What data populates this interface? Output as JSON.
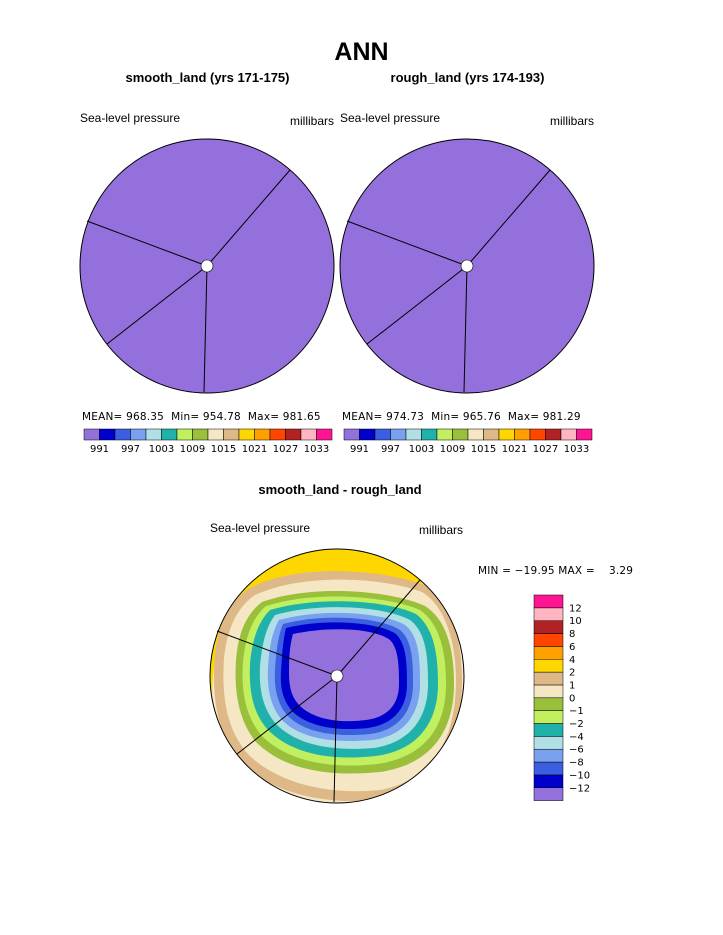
{
  "title": "ANN",
  "colors": {
    "abs_scale": [
      "#9370db",
      "#0000cd",
      "#3a5fe0",
      "#7aa0f0",
      "#b0e0e6",
      "#20b2aa",
      "#c0f060",
      "#9abf3a",
      "#f5e6c4",
      "#deb887",
      "#ffd700",
      "#ffa000",
      "#ff4500",
      "#b22222",
      "#ffb6c1",
      "#ff1493"
    ],
    "diff_scale": [
      "#9370db",
      "#0000cd",
      "#3a5fe0",
      "#7aa0f0",
      "#b0e0e6",
      "#20b2aa",
      "#c0f060",
      "#9abf3a",
      "#f5e6c4",
      "#deb887",
      "#ffd700",
      "#ffa000",
      "#ff4500",
      "#b22222",
      "#ffb6c1",
      "#ff1493"
    ]
  },
  "panels": [
    {
      "title": "smooth_land (yrs 171-175)",
      "variable": "Sea-level pressure",
      "units": "millibars",
      "stats": {
        "mean_label": "MEAN=",
        "mean": "968.35",
        "min_label": "Min=",
        "min": "954.78",
        "max_label": "Max=",
        "max": "981.65"
      },
      "colorbar_labels": [
        "991",
        "997",
        "1003",
        "1009",
        "1015",
        "1021",
        "1027",
        "1033"
      ]
    },
    {
      "title": "rough_land (yrs 174-193)",
      "variable": "Sea-level pressure",
      "units": "millibars",
      "stats": {
        "mean_label": "MEAN=",
        "mean": "974.73",
        "min_label": "Min=",
        "min": "965.76",
        "max_label": "Max=",
        "max": "981.29"
      },
      "colorbar_labels": [
        "991",
        "997",
        "1003",
        "1009",
        "1015",
        "1021",
        "1027",
        "1033"
      ]
    }
  ],
  "diff": {
    "title": "smooth_land - rough_land",
    "variable": "Sea-level pressure",
    "units": "millibars",
    "minmax": "MIN = −19.95 MAX =    3.29",
    "colorbar_labels": [
      "12",
      "10",
      "8",
      "6",
      "4",
      "2",
      "1",
      "0",
      "−1",
      "−2",
      "−4",
      "−6",
      "−8",
      "−10",
      "−12"
    ]
  },
  "chart_data": [
    {
      "type": "heatmap",
      "title": "smooth_land (yrs 171-175)",
      "projection": "polar",
      "field": "Sea-level pressure",
      "units": "millibars",
      "mean": 968.35,
      "min": 954.78,
      "max": 981.65,
      "contour_levels": [
        991,
        997,
        1003,
        1009,
        1015,
        1021,
        1027,
        1033
      ]
    },
    {
      "type": "heatmap",
      "title": "rough_land (yrs 174-193)",
      "projection": "polar",
      "field": "Sea-level pressure",
      "units": "millibars",
      "mean": 974.73,
      "min": 965.76,
      "max": 981.29,
      "contour_levels": [
        991,
        997,
        1003,
        1009,
        1015,
        1021,
        1027,
        1033
      ]
    },
    {
      "type": "heatmap",
      "title": "smooth_land - rough_land",
      "projection": "polar",
      "field": "Sea-level pressure",
      "units": "millibars",
      "min": -19.95,
      "max": 3.29,
      "contour_levels": [
        -12,
        -10,
        -8,
        -6,
        -4,
        -2,
        -1,
        0,
        1,
        2,
        4,
        6,
        8,
        10,
        12
      ]
    }
  ]
}
